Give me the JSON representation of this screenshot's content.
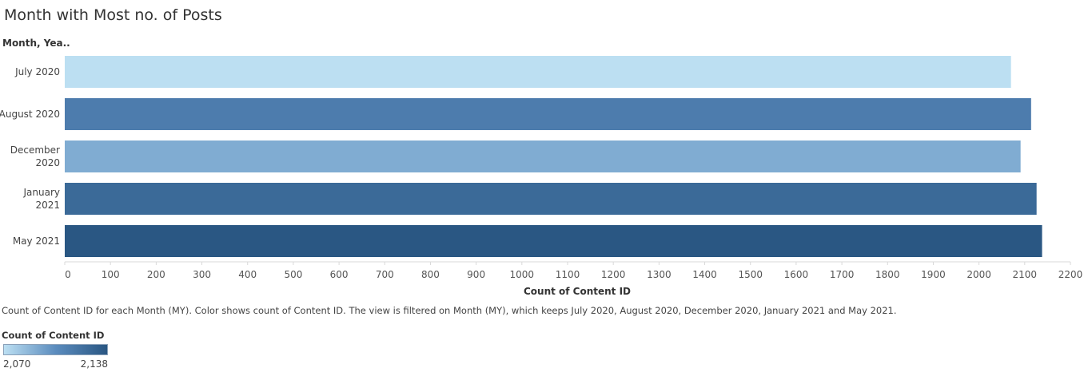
{
  "title": "Month with Most no. of Posts",
  "row_header": "Month, Yea..",
  "caption": "Count of Content ID for each Month (MY).  Color shows count of Content ID. The view is filtered on Month (MY), which keeps July 2020, August 2020, December 2020, January 2021 and May 2021.",
  "legend": {
    "title": "Count of Content ID",
    "min_label": "2,070",
    "max_label": "2,138",
    "color_low": "#bcdff2",
    "color_high": "#2a5783"
  },
  "chart_data": {
    "type": "bar",
    "orientation": "horizontal",
    "categories": [
      [
        "July 2020"
      ],
      [
        "August 2020"
      ],
      [
        "December",
        "2020"
      ],
      [
        "January",
        "2021"
      ],
      [
        "May 2021"
      ]
    ],
    "values": [
      2070,
      2114,
      2091,
      2126,
      2138
    ],
    "xlabel": "Count of Content ID",
    "ylabel": "Month, Yea..",
    "xlim": [
      0,
      2200
    ],
    "x_ticks": [
      0,
      100,
      200,
      300,
      400,
      500,
      600,
      700,
      800,
      900,
      1000,
      1100,
      1200,
      1300,
      1400,
      1500,
      1600,
      1700,
      1800,
      1900,
      2000,
      2100,
      2200
    ],
    "color_range": [
      2070,
      2138
    ],
    "grid": false
  }
}
